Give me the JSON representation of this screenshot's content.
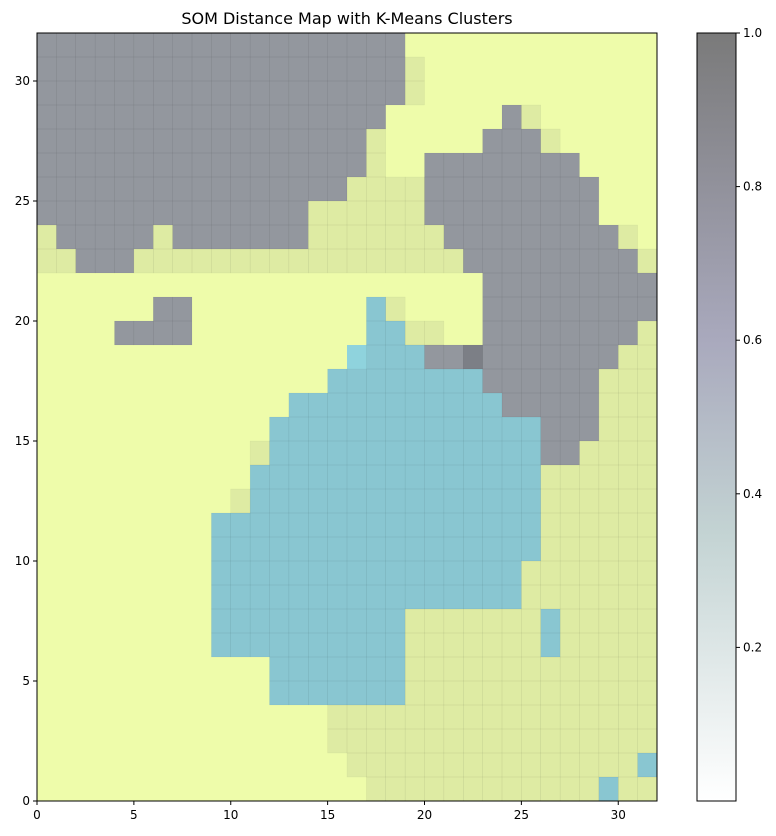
{
  "chart_data": {
    "type": "heatmap",
    "title": "SOM Distance Map with K-Means Clusters",
    "xlabel": "",
    "ylabel": "",
    "xlim": [
      0,
      32
    ],
    "ylim": [
      0,
      32
    ],
    "x_ticks": [
      0,
      5,
      10,
      15,
      20,
      25,
      30
    ],
    "y_ticks": [
      0,
      5,
      10,
      15,
      20,
      25,
      30
    ],
    "grid": false,
    "grid_size": [
      32,
      32
    ],
    "clusters": [
      {
        "name": "",
        "color": "#eefcaa"
      },
      {
        "name": "",
        "color": "#8fd3dd"
      },
      {
        "name": "",
        "color": "#9a9fa4"
      }
    ],
    "colorbar": {
      "label": "",
      "range": [
        0,
        1
      ],
      "ticks": [
        0.2,
        0.4,
        0.6,
        0.8,
        1.0
      ],
      "tick_labels": [
        "0.2",
        "0.4",
        "0.6",
        "0.8",
        "1.0"
      ],
      "colors": [
        "#ffffff",
        "#c3d3d3",
        "#a9a9bd",
        "#7a7a7a"
      ]
    },
    "cluster_rows_top_to_bottom": [
      "22222222222222222220000000000000",
      "22222222222222222220000000000000",
      "22222222222222222220000000000000",
      "22222222222222222200000020000000",
      "22222222222222222000000222000000",
      "22222222222222222000222222220000",
      "22222222222222220000222222222000",
      "22222222222222000000222222222000",
      "02222202222222000000022222222200",
      "00222000000000000000002222222220",
      "00000000000000000000000222222222",
      "00000022000000000100000222222222",
      "00002222000000000110000222222220",
      "00000000000000001111222222222200",
      "00000000000000011111111222222000",
      "00000000000001111111111122222000",
      "00000000000011111111111111222000",
      "00000000000011111111111111220000",
      "00000000000111111111111111000000",
      "00000000000111111111111111000000",
      "00000000011111111111111111000000",
      "00000000011111111111111111000000",
      "00000000011111111111111110000000",
      "00000000011111111111111110000000",
      "00000000011111111110000000100000",
      "00000000011111111110000000100000",
      "00000000000011111110000000000000",
      "00000000000011111110000000000000",
      "00000000000000000000000000000000",
      "00000000000000000000000000000000",
      "00000000000000000000000000000001",
      "00000000000000000000000000000100"
    ],
    "distance_rows_top_to_bottom": [
      "11111111111111111110000000000000",
      "11111111111111111111000000000000",
      "11111111111111111111000000000000",
      "11111111111111111100000011000000",
      "11111111111111111100000111100000",
      "11111111111111111100111111110000",
      "11111111111111111111111111111000",
      "11111111111111111111111111111000",
      "11111111111111111111111111111110",
      "11111111111111111111111111111111",
      "00000000000000000000000111111111",
      "00000011000000000110000111111111",
      "00001111000000000111100111111111",
      "00000000000000000111112111111111",
      "00000000000000011111111111111111",
      "00000000000001111111111111111111",
      "00000000000011111111111111111111",
      "00000000000111111111111111111111",
      "00000000000111111111111111111111",
      "00000000001111111111111111111111",
      "00000000011111111111111111111111",
      "00000000011111111111111111111111",
      "00000000011111111111111111111111",
      "00000000011111111111111111111111",
      "00000000011111111111111111111111",
      "00000000011111111111111111111111",
      "00000000000011111111111111111111",
      "00000000000011111111111111111111",
      "00000000000000011111111111111111",
      "00000000000000011111111111111111",
      "00000000000000001111111111111111",
      "00000000000000000111111111111111"
    ]
  }
}
